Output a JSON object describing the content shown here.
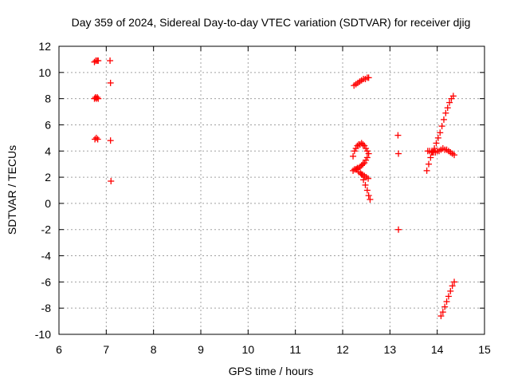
{
  "chart_data": {
    "type": "scatter",
    "title": "Day 359 of 2024, Sidereal Day-to-day VTEC variation (SDTVAR) for receiver djig",
    "xlabel": "GPS time / hours",
    "ylabel": "SDTVAR / TECUs",
    "xlim": [
      6,
      15
    ],
    "ylim": [
      -10,
      12
    ],
    "xticks": [
      "6",
      "7",
      "8",
      "9",
      "10",
      "11",
      "12",
      "13",
      "14",
      "15"
    ],
    "yticks": [
      "-10",
      "-8",
      "-6",
      "-4",
      "-2",
      "0",
      "2",
      "4",
      "6",
      "8",
      "10",
      "12"
    ],
    "grid": true,
    "marker": "+",
    "marker_color": "#ff0000",
    "series": [
      {
        "name": "SDTVAR",
        "x": [
          6.75,
          6.78,
          6.81,
          6.83,
          6.75,
          6.77,
          6.79,
          6.81,
          6.83,
          6.76,
          6.79,
          6.82,
          7.08,
          7.09,
          7.09,
          7.1,
          12.24,
          12.28,
          12.32,
          12.36,
          12.4,
          12.44,
          12.48,
          12.52,
          12.55,
          12.22,
          12.25,
          12.28,
          12.31,
          12.34,
          12.37,
          12.4,
          12.43,
          12.46,
          12.49,
          12.52,
          12.55,
          12.52,
          12.49,
          12.46,
          12.43,
          12.4,
          12.37,
          12.34,
          12.31,
          12.28,
          12.25,
          12.22,
          12.4,
          12.44,
          12.48,
          12.52,
          12.55,
          12.58,
          12.3,
          12.34,
          12.38,
          12.42,
          12.46,
          12.5,
          12.54,
          13.17,
          13.18,
          13.18,
          13.78,
          13.82,
          13.86,
          13.9,
          13.94,
          13.98,
          14.02,
          14.06,
          14.1,
          14.14,
          14.18,
          14.22,
          14.26,
          14.3,
          14.34,
          13.8,
          13.84,
          13.88,
          13.92,
          13.96,
          14.0,
          14.04,
          14.08,
          14.12,
          14.16,
          14.2,
          14.24,
          14.28,
          14.32,
          14.36,
          14.08,
          14.12,
          14.16,
          14.2,
          14.24,
          14.28,
          14.32,
          14.36
        ],
        "y": [
          10.8,
          10.9,
          10.9,
          10.9,
          8.0,
          8.1,
          8.0,
          8.1,
          8.0,
          4.9,
          5.0,
          4.9,
          10.9,
          9.2,
          4.8,
          1.7,
          9.0,
          9.1,
          9.2,
          9.3,
          9.4,
          9.5,
          9.5,
          9.6,
          9.6,
          3.6,
          4.0,
          4.2,
          4.4,
          4.5,
          4.5,
          4.6,
          4.5,
          4.4,
          4.2,
          4.0,
          3.8,
          3.5,
          3.3,
          3.1,
          3.0,
          2.9,
          2.8,
          2.7,
          2.7,
          2.6,
          2.6,
          2.5,
          2.2,
          1.8,
          1.4,
          1.0,
          0.6,
          0.3,
          2.6,
          2.4,
          2.3,
          2.2,
          2.1,
          2.0,
          1.9,
          5.2,
          3.8,
          -2.0,
          2.5,
          3.0,
          3.5,
          3.9,
          4.2,
          4.6,
          5.0,
          5.4,
          5.9,
          6.4,
          6.9,
          7.3,
          7.7,
          8.0,
          8.2,
          4.0,
          4.0,
          3.9,
          3.9,
          3.9,
          4.0,
          4.0,
          4.1,
          4.2,
          4.1,
          4.1,
          4.0,
          3.9,
          3.8,
          3.7,
          -8.6,
          -8.3,
          -7.9,
          -7.5,
          -7.1,
          -6.7,
          -6.3,
          -6.0
        ]
      }
    ]
  }
}
